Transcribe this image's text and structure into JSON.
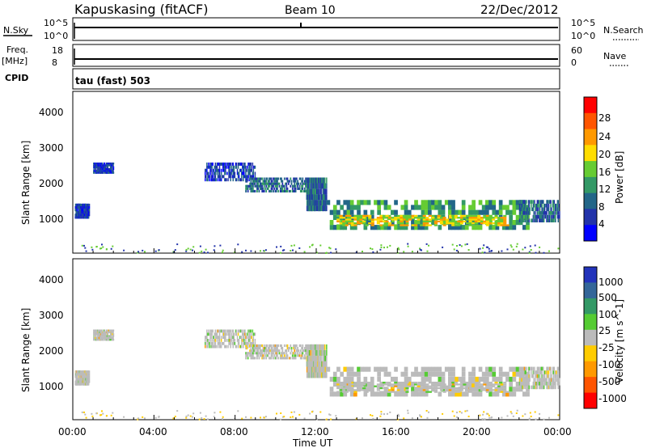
{
  "header": {
    "station": "Kapuskasing (fitACF)",
    "beam": "Beam 10",
    "date": "22/Dec/2012"
  },
  "noise_panel": {
    "left_label": "N.Sky",
    "left_ticks": [
      "10^5",
      "10^0"
    ],
    "right_label": "N.Search",
    "right_ticks": [
      "10^5",
      "10^0"
    ]
  },
  "freq_panel": {
    "left_label": "Freq.",
    "left_unit": "[MHz]",
    "left_ticks": [
      "18",
      "8"
    ],
    "right_label": "Nave",
    "right_ticks": [
      "60",
      "0"
    ]
  },
  "cpid": {
    "label": "CPID",
    "value": "tau (fast) 503"
  },
  "power_colorbar": {
    "label": "Power [dB]",
    "ticks": [
      "28",
      "24",
      "20",
      "16",
      "12",
      "8",
      "4"
    ],
    "colors": [
      "#ff0000",
      "#ff5500",
      "#ff9900",
      "#ffdd00",
      "#66cc33",
      "#339966",
      "#226688",
      "#2233aa",
      "#0000ff"
    ]
  },
  "velocity_colorbar": {
    "label": "Velocity [m s^-1]",
    "ticks": [
      "1000",
      "500",
      "100",
      "25",
      "-25",
      "-100",
      "-500",
      "-1000"
    ],
    "colors": [
      "#2233bb",
      "#336699",
      "#339966",
      "#55cc33",
      "#bbbbbb",
      "#ffcc00",
      "#ff9900",
      "#ff5500",
      "#ff0000"
    ]
  },
  "chart_data": [
    {
      "type": "heatmap",
      "name": "power",
      "ylabel": "Slant Range [km]",
      "yticks": [
        "4000",
        "3000",
        "2000",
        "1000"
      ],
      "ylim": [
        180,
        4500
      ],
      "xlim": [
        0,
        24
      ],
      "regions": [
        {
          "t": [
            0.1,
            0.8
          ],
          "r": [
            1100,
            1500
          ],
          "level": 1
        },
        {
          "t": [
            1.0,
            2.0
          ],
          "r": [
            2300,
            2600
          ],
          "level": 1
        },
        {
          "t": [
            6.5,
            9.0
          ],
          "r": [
            2100,
            2600
          ],
          "level": 1
        },
        {
          "t": [
            8.5,
            11.5
          ],
          "r": [
            1800,
            2200
          ],
          "level": 2
        },
        {
          "t": [
            11.5,
            12.5
          ],
          "r": [
            1300,
            2200
          ],
          "level": 2
        },
        {
          "t": [
            12.5,
            22.5
          ],
          "r": [
            800,
            1600
          ],
          "level": 3
        },
        {
          "t": [
            13.0,
            21.5
          ],
          "r": [
            900,
            1200
          ],
          "level": 5
        },
        {
          "t": [
            22.0,
            24.0
          ],
          "r": [
            1000,
            1600
          ],
          "level": 2
        }
      ]
    },
    {
      "type": "heatmap",
      "name": "velocity",
      "ylabel": "Slant Range [km]",
      "yticks": [
        "4000",
        "3000",
        "2000",
        "1000"
      ],
      "xlabel": "Time UT",
      "xticks": [
        "00:00",
        "04:00",
        "08:00",
        "12:00",
        "16:00",
        "20:00",
        "00:00"
      ],
      "ylim": [
        180,
        4500
      ],
      "xlim": [
        0,
        24
      ]
    }
  ]
}
